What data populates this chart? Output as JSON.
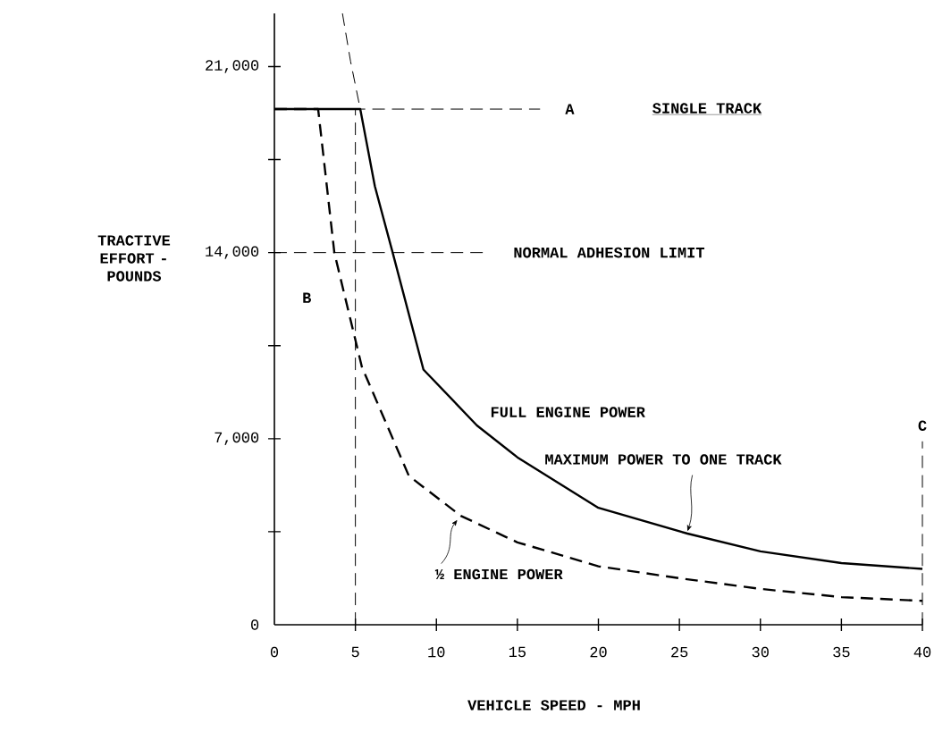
{
  "chart_data": {
    "type": "line",
    "xlabel": "VEHICLE SPEED - MPH",
    "ylabel": "TRACTIVE EFFORT - POUNDS",
    "xlim": [
      0,
      40
    ],
    "ylim": [
      0,
      23000
    ],
    "xticks": [
      0,
      5,
      10,
      15,
      20,
      25,
      30,
      35,
      40
    ],
    "yticks": [
      0,
      {
        "value": 3500,
        "label": null
      },
      {
        "value": 7000,
        "label": "7,000"
      },
      {
        "value": 10500,
        "label": null
      },
      {
        "value": 14000,
        "label": "14,000"
      },
      {
        "value": 17500,
        "label": null
      },
      {
        "value": 21000,
        "label": "21,000"
      }
    ],
    "grid": false,
    "legend": false,
    "marker": "none",
    "series": [
      {
        "name": "FULL ENGINE POWER",
        "color": "#000000",
        "line_style": "solid",
        "x": [
          0,
          5.3,
          6.2,
          7.3,
          9.2,
          12.5,
          15,
          20,
          25.5,
          30,
          35,
          40
        ],
        "values": [
          19400,
          19400,
          16500,
          14000,
          9600,
          7500,
          6300,
          4400,
          3430,
          2760,
          2320,
          2100
        ]
      },
      {
        "name": "½ ENGINE POWER",
        "color": "#000000",
        "line_style": "dashed",
        "x": [
          0,
          2.7,
          3.7,
          5.4,
          8.3,
          11.5,
          15,
          20,
          25,
          30,
          35,
          40
        ],
        "values": [
          19400,
          19400,
          14000,
          9700,
          5600,
          4100,
          3100,
          2200,
          1750,
          1350,
          1040,
          900
        ]
      },
      {
        "color": "#000000",
        "line_style": "dashed",
        "x": [
          4.2,
          4.7,
          5.3
        ],
        "values": [
          23000,
          21200,
          19400
        ]
      }
    ],
    "ref_lines": [
      {
        "axis": "y",
        "value": 19400,
        "label": "A",
        "line_style": "dashed"
      },
      {
        "axis": "y",
        "value": 14000,
        "label": "NORMAL ADHESION LIMIT",
        "line_style": "dashed"
      },
      {
        "axis": "x",
        "value": 5,
        "label": "B",
        "line_style": "dashed"
      },
      {
        "axis": "x",
        "value": 40,
        "label": "C",
        "line_style": "dashed"
      }
    ],
    "annotations": [
      "SINGLE TRACK",
      {
        "text": "MAXIMUM POWER TO ONE TRACK",
        "x": 25.5,
        "y": 3430
      }
    ]
  }
}
